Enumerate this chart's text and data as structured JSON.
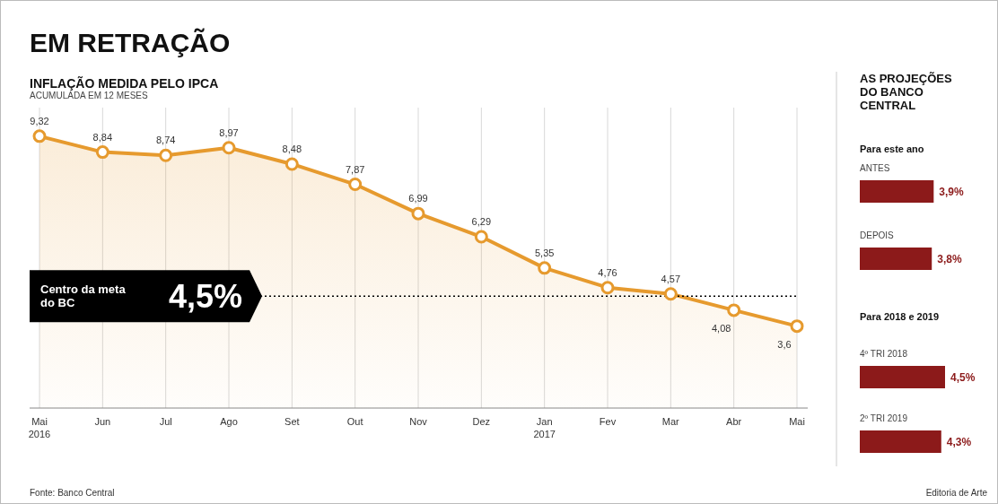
{
  "chart_data": [
    {
      "type": "area",
      "title": "EM RETRAÇÃO",
      "subtitle": "INFLAÇÃO MEDIDA PELO IPCA",
      "categories": [
        "Mai\n2016",
        "Jun",
        "Jul",
        "Ago",
        "Set",
        "Out",
        "Nov",
        "Dez",
        "Jan\n2017",
        "Fev",
        "Mar",
        "Abr",
        "Mai"
      ],
      "series": [
        {
          "color": "#e69a2e",
          "values": [
            9.32,
            8.84,
            8.74,
            8.97,
            8.48,
            7.87,
            6.99,
            6.29,
            5.35,
            4.76,
            4.57,
            4.08,
            3.6
          ],
          "value_labels": [
            "9,32",
            "8,84",
            "8,74",
            "8,97",
            "8,48",
            "7,87",
            "6,99",
            "6,29",
            "5,35",
            "4,76",
            "4,57",
            "4,08",
            "3,6"
          ]
        }
      ],
      "marker": "circle",
      "grid": "x",
      "ref_lines": [
        {
          "axis": "y",
          "value": 4.5,
          "label": "Centro da meta do BC 4,5%",
          "color": "#000000",
          "line_style": "dotted"
        }
      ],
      "annotations": [
        "ACUMULADA EM 12 MESES",
        "Fonte: Banco Central",
        "Editoria de Arte"
      ]
    },
    {
      "type": "bar",
      "orientation": "horizontal",
      "title": "AS PROJEÇÕES DO BANCO CENTRAL",
      "categories": [
        "ANTES",
        "DEPOIS",
        "4º TRI 2018",
        "2º TRI 2019"
      ],
      "values": [
        3.9,
        3.8,
        4.5,
        4.3
      ],
      "color": "#8c1a1a",
      "value_labels": [
        "3,9%",
        "3,8%",
        "4,5%",
        "4,3%"
      ],
      "annotations": [
        "Para este ano",
        "Para 2018 e 2019"
      ]
    }
  ]
}
